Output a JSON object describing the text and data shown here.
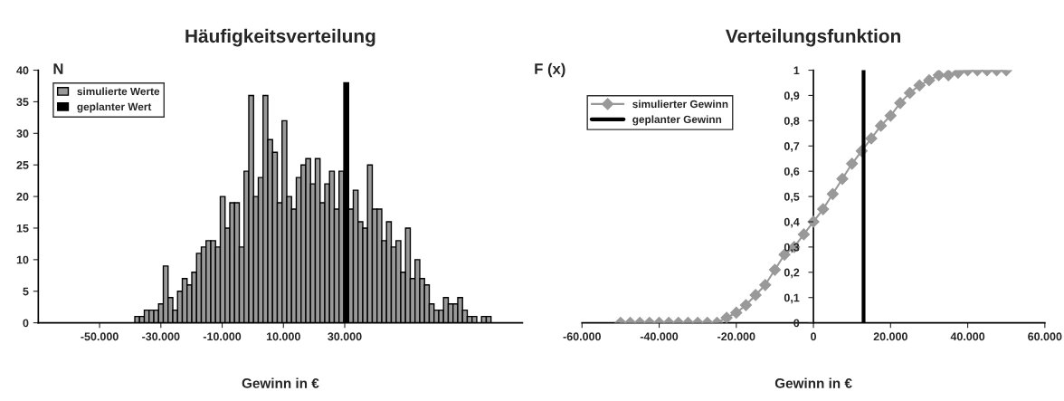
{
  "chart_data": [
    {
      "type": "histogram",
      "title": "Häufigkeitsverteilung",
      "xlabel": "Gewinn in €",
      "ylabel": "N",
      "bins": [
        -38500,
        -36950,
        -35400,
        -33850,
        -32300,
        -30750,
        -29200,
        -27650,
        -26100,
        -24550,
        -23000,
        -21450,
        -19900,
        -18350,
        -16800,
        -15250,
        -13700,
        -12150,
        -10600,
        -9050,
        -7500,
        -5950,
        -4400,
        -2850,
        -1300,
        250,
        1800,
        3350,
        4900,
        6450,
        8000,
        9550,
        11100,
        12650,
        14200,
        15750,
        17300,
        18850,
        20400,
        21950,
        23500,
        25050,
        26600,
        28150,
        29700,
        31250,
        32800,
        34350,
        35900,
        37450,
        39000,
        40550,
        42100,
        43650,
        45200,
        46750,
        48300,
        49850,
        51400,
        52950,
        54500,
        56050,
        57600,
        59150,
        60700,
        62250,
        63800,
        65350,
        66900,
        68450,
        70000,
        71550,
        73100,
        74650,
        76200,
        77750
      ],
      "series": [
        {
          "name": "simulierte Werte",
          "color": "#999999",
          "values": [
            1,
            1,
            2,
            2,
            2,
            3,
            9,
            4,
            2,
            5,
            7,
            6,
            8,
            11,
            12,
            13,
            13,
            12,
            20,
            15,
            19,
            19,
            12,
            24,
            36,
            20,
            23,
            36,
            29,
            27,
            19,
            32,
            20,
            18,
            23,
            25,
            26,
            22,
            26,
            19,
            22,
            24,
            18,
            24,
            null,
            18,
            21,
            16,
            15,
            25,
            18,
            18,
            13,
            16,
            12,
            13,
            8,
            15,
            7,
            10,
            7,
            6,
            3,
            2,
            2,
            4,
            3,
            3,
            4,
            2,
            1,
            1,
            0,
            1,
            1
          ]
        },
        {
          "name": "geplanter Wert",
          "color": "#000000",
          "type": "bar",
          "x": [
            30500
          ],
          "values": [
            38
          ]
        }
      ],
      "xlim": [
        -70000,
        88000
      ],
      "xticks": [
        {
          "value": -50000,
          "label": "-50.000"
        },
        {
          "value": -30000,
          "label": "-30.000"
        },
        {
          "value": -10000,
          "label": "-10.000"
        },
        {
          "value": 10000,
          "label": "10.000"
        },
        {
          "value": 30000,
          "label": "30.000"
        }
      ],
      "ylim": [
        0,
        40
      ],
      "yticks": [
        0,
        5,
        10,
        15,
        20,
        25,
        30,
        35,
        40
      ],
      "grid": false,
      "legend": "top left"
    },
    {
      "type": "line",
      "title": "Verteilungsfunktion",
      "xlabel": "Gewinn in €",
      "ylabel": "F (x)",
      "series": [
        {
          "name": "simulierter Gewinn",
          "color": "#999999",
          "marker": "diamond",
          "x": [
            -50000,
            -47500,
            -45000,
            -42500,
            -40000,
            -37500,
            -35000,
            -32500,
            -30000,
            -27500,
            -25000,
            -22500,
            -20000,
            -17500,
            -15000,
            -12500,
            -10000,
            -7500,
            -5000,
            -2500,
            0,
            2500,
            5000,
            7500,
            10000,
            12500,
            15000,
            17500,
            20000,
            22500,
            25000,
            27500,
            30000,
            32500,
            35000,
            37500,
            40000,
            42500,
            45000,
            47500,
            50000
          ],
          "values": [
            0,
            0,
            0,
            0,
            0,
            0,
            0,
            0,
            0,
            0,
            0,
            0.02,
            0.04,
            0.07,
            0.11,
            0.15,
            0.21,
            0.27,
            0.3,
            0.35,
            0.4,
            0.45,
            0.51,
            0.57,
            0.63,
            0.68,
            0.73,
            0.78,
            0.82,
            0.87,
            0.91,
            0.94,
            0.96,
            0.98,
            0.98,
            0.99,
            1,
            1,
            1,
            1,
            1
          ]
        },
        {
          "name": "geplanter Gewinn",
          "color": "#000000",
          "x": [
            13000,
            13000
          ],
          "values": [
            0,
            1
          ]
        }
      ],
      "xlim": [
        -60000,
        60000
      ],
      "xticks": [
        {
          "value": -60000,
          "label": "-60.000"
        },
        {
          "value": -40000,
          "label": "-40.000"
        },
        {
          "value": -20000,
          "label": "-20.000"
        },
        0,
        {
          "value": 20000,
          "label": "20.000"
        },
        {
          "value": 40000,
          "label": "40.000"
        },
        {
          "value": 60000,
          "label": "60.000"
        }
      ],
      "ylim": [
        0,
        1
      ],
      "yticks": [
        0,
        {
          "value": 0.1,
          "label": "0,1"
        },
        {
          "value": 0.2,
          "label": "0,2"
        },
        {
          "value": 0.3,
          "label": "0,3"
        },
        {
          "value": 0.4,
          "label": "0,4"
        },
        {
          "value": 0.5,
          "label": "0,5"
        },
        {
          "value": 0.6,
          "label": "0,6"
        },
        {
          "value": 0.7,
          "label": "0,7"
        },
        {
          "value": 0.8,
          "label": "0,8"
        },
        {
          "value": 0.9,
          "label": "0,9"
        },
        1
      ],
      "grid": false,
      "legend": "top left"
    }
  ]
}
